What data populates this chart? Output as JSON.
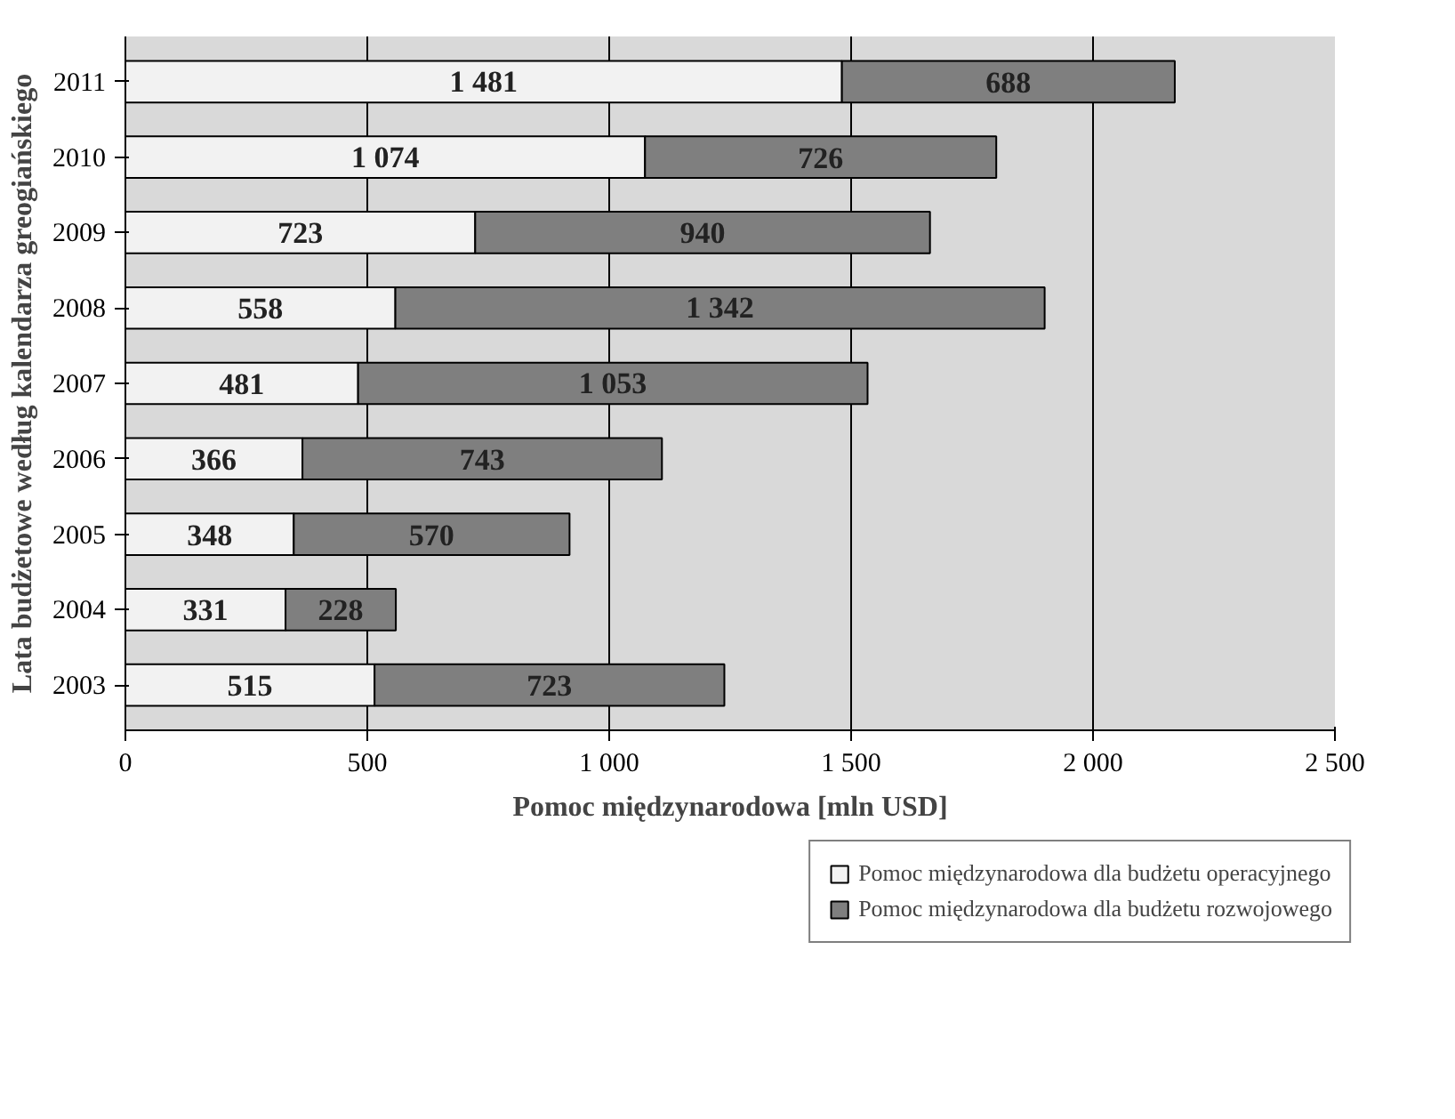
{
  "chart_data": {
    "type": "bar",
    "orientation": "horizontal",
    "stacked": true,
    "xlabel": "Pomoc międzynarodowa [mln USD]",
    "ylabel": "Lata budżetowe według kalendarza greogiańskiego",
    "categories": [
      "2011",
      "2010",
      "2009",
      "2008",
      "2007",
      "2006",
      "2005",
      "2004",
      "2003"
    ],
    "series": [
      {
        "name": "Pomoc międzynarodowa dla budżetu operacyjnego",
        "color": "#f2f2f2",
        "values": [
          1481,
          1074,
          723,
          558,
          481,
          366,
          348,
          331,
          515
        ],
        "value_labels": [
          "1 481",
          "1 074",
          "723",
          "558",
          "481",
          "366",
          "348",
          "331",
          "515"
        ]
      },
      {
        "name": "Pomoc międzynarodowa dla budżetu rozwojowego",
        "color": "#7f7f7f",
        "values": [
          688,
          726,
          940,
          1342,
          1053,
          743,
          570,
          228,
          723
        ],
        "value_labels": [
          "688",
          "726",
          "940",
          "1 342",
          "1 053",
          "743",
          "570",
          "228",
          "723"
        ]
      }
    ],
    "xlim": [
      0,
      2500
    ],
    "xticks": [
      0,
      500,
      {
        "value": 1000,
        "label": "1 000"
      },
      {
        "value": 1500,
        "label": "1 500"
      },
      {
        "value": 2000,
        "label": "2 000"
      },
      {
        "value": 2500,
        "label": "2 500"
      }
    ],
    "grid": "x",
    "legend": "bottom right"
  }
}
